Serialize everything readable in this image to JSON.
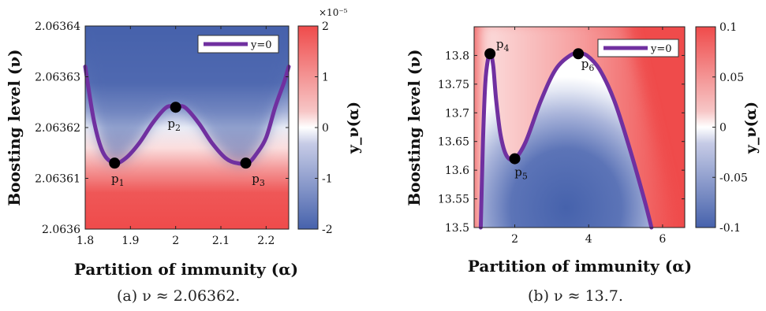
{
  "chart_data": [
    {
      "type": "heatmap",
      "caption": "(a) ν ≈ 2.06362.",
      "xlabel": "Partition of immunity (α)",
      "ylabel": "Boosting level (ν)",
      "xlim": [
        1.8,
        2.25
      ],
      "ylim": [
        2.0636,
        2.06364
      ],
      "xticks": [
        "1.8",
        "1.9",
        "2",
        "2.1",
        "2.2"
      ],
      "xtick_values": [
        1.8,
        1.9,
        2.0,
        2.1,
        2.2
      ],
      "yticks": [
        "2.0636",
        "2.06361",
        "2.06362",
        "2.06363",
        "2.06364"
      ],
      "ytick_values": [
        2.0636,
        2.06361,
        2.06362,
        2.06363,
        2.06364
      ],
      "colorbar": {
        "label": "y_ν(α)",
        "range": [
          -2,
          2
        ],
        "multiplier": "×10⁻⁵",
        "ticks": [
          "2",
          "1",
          "0",
          "-1",
          "-2"
        ],
        "tick_values": [
          2,
          1,
          0,
          -1,
          -2
        ],
        "colors": {
          "negative": "#4662ac",
          "zero": "#ffffff",
          "positive": "#ef4b4b"
        }
      },
      "legend": {
        "label": "y=0",
        "position": "top-right",
        "color": "#7030a0"
      },
      "series": [
        {
          "name": "y=0",
          "x": [
            1.8,
            1.82,
            1.84,
            1.865,
            1.89,
            1.92,
            1.95,
            1.98,
            2.0,
            2.02,
            2.05,
            2.08,
            2.11,
            2.135,
            2.16,
            2.18,
            2.2,
            2.22,
            2.24,
            2.25
          ],
          "y": [
            2.063632,
            2.063621,
            2.063615,
            2.063613,
            2.063614,
            2.063617,
            2.063621,
            2.063624,
            2.063624,
            2.063624,
            2.063621,
            2.063617,
            2.063614,
            2.063613,
            2.063613,
            2.063615,
            2.063618,
            2.063624,
            2.063629,
            2.063632
          ]
        }
      ],
      "points": [
        {
          "label": "p",
          "sub": "1",
          "x": 1.865,
          "y": 2.063613
        },
        {
          "label": "p",
          "sub": "2",
          "x": 2.0,
          "y": 2.063624
        },
        {
          "label": "p",
          "sub": "3",
          "x": 2.155,
          "y": 2.063613
        }
      ]
    },
    {
      "type": "heatmap",
      "caption": "(b) ν ≈ 13.7.",
      "xlabel": "Partition of immunity (α)",
      "ylabel": "Boosting level (ν)",
      "xlim": [
        0.9,
        6.6
      ],
      "ylim": [
        13.5,
        13.85
      ],
      "xticks": [
        "2",
        "4",
        "6"
      ],
      "xtick_values": [
        2,
        4,
        6
      ],
      "yticks": [
        "13.5",
        "13.55",
        "13.6",
        "13.65",
        "13.7",
        "13.75",
        "13.8"
      ],
      "ytick_values": [
        13.5,
        13.55,
        13.6,
        13.65,
        13.7,
        13.75,
        13.8
      ],
      "colorbar": {
        "label": "y_ν(α)",
        "range": [
          -0.1,
          0.1
        ],
        "ticks": [
          "0.1",
          "0.05",
          "0",
          "-0.05",
          "-0.1"
        ],
        "tick_values": [
          0.1,
          0.05,
          0,
          -0.05,
          -0.1
        ],
        "colors": {
          "negative": "#4662ac",
          "zero": "#ffffff",
          "positive": "#ef4b4b"
        }
      },
      "legend": {
        "label": "y=0",
        "position": "top-right",
        "color": "#7030a0"
      },
      "series": [
        {
          "name": "y=0",
          "x": [
            1.08,
            1.14,
            1.2,
            1.28,
            1.35,
            1.42,
            1.5,
            1.62,
            1.78,
            2.0,
            2.3,
            2.7,
            3.1,
            3.5,
            3.72,
            3.95,
            4.3,
            4.7,
            5.1,
            5.5,
            5.7
          ],
          "y": [
            13.5,
            13.65,
            13.75,
            13.795,
            13.803,
            13.78,
            13.72,
            13.66,
            13.625,
            13.62,
            13.65,
            13.72,
            13.775,
            13.8,
            13.803,
            13.8,
            13.775,
            13.72,
            13.64,
            13.55,
            13.5
          ]
        }
      ],
      "points": [
        {
          "label": "p",
          "sub": "4",
          "x": 1.33,
          "y": 13.803
        },
        {
          "label": "p",
          "sub": "5",
          "x": 2.0,
          "y": 13.62
        },
        {
          "label": "p",
          "sub": "6",
          "x": 3.72,
          "y": 13.803
        }
      ]
    }
  ]
}
